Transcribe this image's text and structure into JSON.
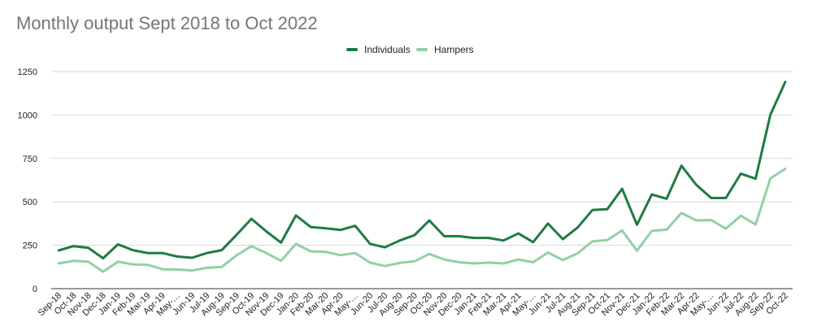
{
  "chart_data": {
    "type": "line",
    "title": "Monthly output Sept 2018 to Oct 2022",
    "xlabel": "",
    "ylabel": "",
    "ylim": [
      0,
      1250
    ],
    "yticks": [
      "0",
      "250",
      "500",
      "750",
      "1000",
      "1250"
    ],
    "grid": true,
    "legend_position": "top-center",
    "categories": [
      "Sep-18",
      "Oct-18",
      "Nov-18",
      "Dec-18",
      "Jan-19",
      "Feb-19",
      "Mar-19",
      "Apr-19",
      "May-…",
      "Jun-19",
      "Jul-19",
      "Aug-19",
      "Sep-19",
      "Oct-19",
      "Nov-19",
      "Dec-19",
      "Jan-20",
      "Feb-20",
      "Mar-20",
      "Apr-20",
      "May-…",
      "Jun-20",
      "Jul-20",
      "Aug-20",
      "Sep-20",
      "Oct-20",
      "Nov-20",
      "Dec-20",
      "Jan-21",
      "Feb-21",
      "Mar-21",
      "Apr-21",
      "May-…",
      "Jun-21",
      "Jul-21",
      "Aug-21",
      "Sep-21",
      "Oct-21",
      "Nov-21",
      "Dec-21",
      "Jan-22",
      "Feb-22",
      "Mar-22",
      "Apr-22",
      "May-…",
      "Jun-22",
      "Jul-22",
      "Aug-22",
      "Sep-22",
      "Oct-22"
    ],
    "series": [
      {
        "name": "Individuals",
        "color": "#1e7b43",
        "values": [
          220,
          245,
          235,
          175,
          255,
          222,
          205,
          205,
          185,
          178,
          205,
          222,
          310,
          402,
          330,
          265,
          422,
          355,
          348,
          338,
          362,
          258,
          238,
          277,
          308,
          393,
          302,
          302,
          292,
          292,
          277,
          318,
          268,
          375,
          285,
          352,
          453,
          458,
          575,
          368,
          542,
          518,
          708,
          598,
          522,
          522,
          662,
          633,
          1002,
          1190
        ]
      },
      {
        "name": "Hampers",
        "color": "#93cfa6",
        "values": [
          145,
          160,
          155,
          98,
          155,
          140,
          137,
          112,
          110,
          105,
          120,
          125,
          192,
          245,
          205,
          160,
          258,
          215,
          212,
          193,
          205,
          150,
          130,
          148,
          158,
          200,
          168,
          152,
          145,
          150,
          145,
          168,
          152,
          208,
          165,
          203,
          273,
          280,
          335,
          218,
          333,
          340,
          436,
          393,
          395,
          345,
          420,
          370,
          635,
          690
        ]
      }
    ]
  }
}
